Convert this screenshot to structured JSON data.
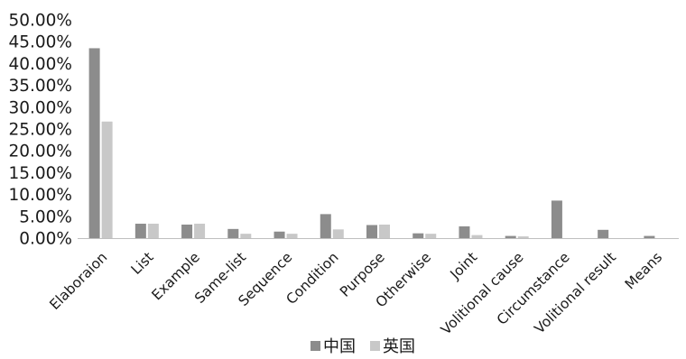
{
  "chart_data": {
    "type": "bar",
    "categories": [
      "Elaboraion",
      "List",
      "Example",
      "Same-list",
      "Sequence",
      "Condition",
      "Purpose",
      "Otherwise",
      "Joint",
      "Volitional cause",
      "Circumstance",
      "Volitional result",
      "Means"
    ],
    "series": [
      {
        "name": "中国",
        "color": "#8c8c8c",
        "values": [
          43.5,
          3.3,
          3.1,
          2.1,
          1.5,
          5.5,
          3.0,
          1.1,
          2.7,
          0.5,
          8.6,
          1.9,
          0.5
        ]
      },
      {
        "name": "英国",
        "color": "#c8c8c8",
        "values": [
          26.7,
          3.3,
          3.3,
          1.0,
          1.0,
          2.0,
          3.1,
          1.0,
          0.7,
          0.4,
          0.0,
          0.0,
          0.0
        ]
      }
    ],
    "y_ticks": [
      "0.00%",
      "5.00%",
      "10.00%",
      "15.00%",
      "20.00%",
      "25.00%",
      "30.00%",
      "35.00%",
      "40.00%",
      "45.00%",
      "50.00%"
    ],
    "ylim": [
      0,
      50
    ],
    "y_unit": "%",
    "grid": false,
    "legend_position": "bottom"
  }
}
